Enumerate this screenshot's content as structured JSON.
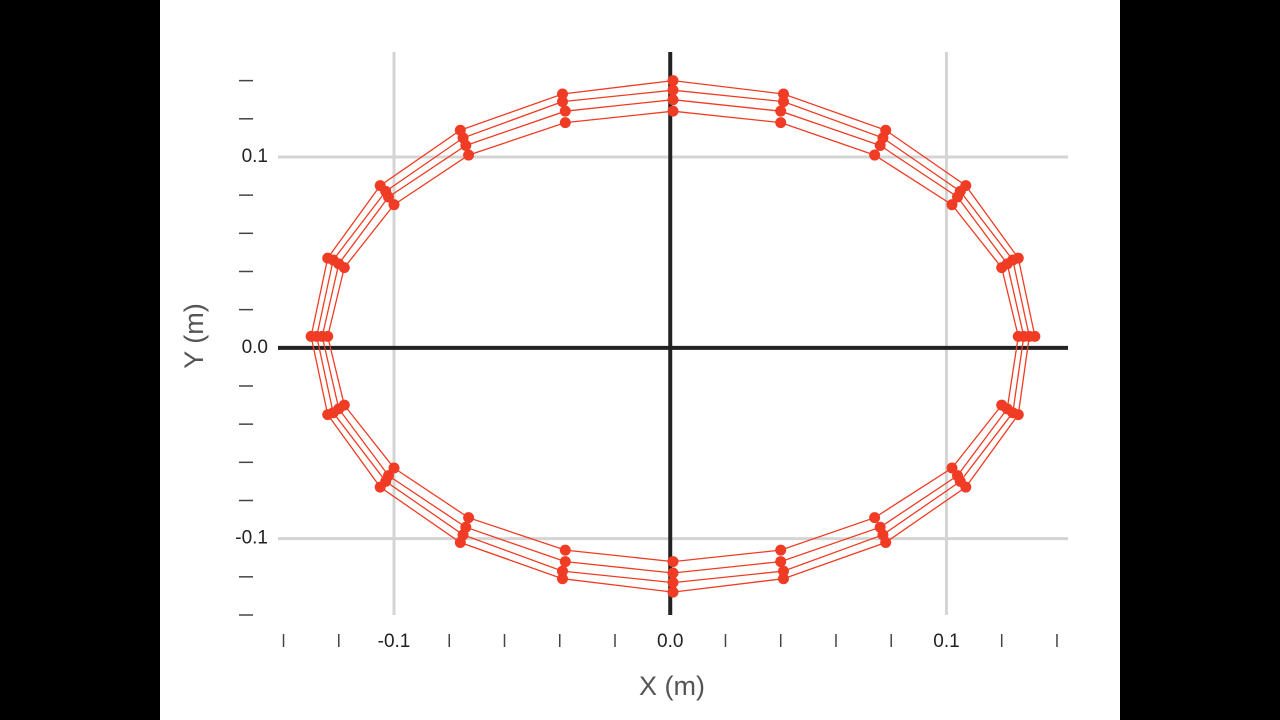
{
  "chart_data": {
    "type": "scatter-line",
    "x_label": "X (m)",
    "y_label": "Y (m)",
    "color": "#f03c24",
    "grid": true,
    "zero_lines": true,
    "xlim": [
      -0.142,
      0.144
    ],
    "ylim": [
      -0.14,
      0.155
    ],
    "xticks": [
      -0.1,
      {
        "value": 0,
        "label": "0.0"
      },
      0.1
    ],
    "yticks": [
      -0.1,
      {
        "value": 0,
        "label": "0.0"
      },
      0.1
    ],
    "xminorticks": [
      -0.14,
      -0.12,
      -0.08,
      -0.06,
      -0.04,
      -0.02,
      0.02,
      0.04,
      0.06,
      0.08,
      0.12,
      0.14
    ],
    "yminorticks": [
      -0.14,
      -0.12,
      -0.08,
      -0.06,
      -0.04,
      -0.02,
      0.02,
      0.04,
      0.06,
      0.08,
      0.12,
      0.14
    ],
    "x": [
      0.132,
      0.126,
      0.107,
      0.078,
      0.041,
      0.001,
      -0.039,
      -0.076,
      -0.105,
      -0.124,
      -0.13,
      -0.124,
      -0.105,
      -0.076,
      -0.039,
      0.001,
      0.041,
      0.078,
      0.107,
      0.126,
      0.13,
      0.124,
      0.105,
      0.077,
      0.041,
      0.001,
      -0.039,
      -0.075,
      -0.103,
      -0.122,
      -0.128,
      -0.122,
      -0.103,
      -0.075,
      -0.039,
      0.001,
      0.041,
      0.077,
      0.105,
      0.124,
      0.128,
      0.122,
      0.104,
      0.076,
      0.04,
      0.001,
      -0.038,
      -0.074,
      -0.102,
      -0.12,
      -0.126,
      -0.12,
      -0.102,
      -0.074,
      -0.038,
      0.001,
      0.04,
      0.076,
      0.104,
      0.122,
      0.126,
      0.12,
      0.102,
      0.074,
      0.04,
      0.001,
      -0.038,
      -0.073,
      -0.1,
      -0.118,
      -0.124,
      -0.118,
      -0.1,
      -0.073,
      -0.038,
      0.001,
      0.04,
      0.074,
      0.102,
      0.12
    ],
    "y": [
      0.006,
      0.047,
      0.085,
      0.114,
      0.133,
      0.14,
      0.133,
      0.114,
      0.085,
      0.047,
      0.006,
      -0.035,
      -0.073,
      -0.102,
      -0.121,
      -0.128,
      -0.121,
      -0.102,
      -0.073,
      -0.035,
      0.006,
      0.046,
      0.082,
      0.11,
      0.129,
      0.135,
      0.129,
      0.11,
      0.082,
      0.046,
      0.006,
      -0.034,
      -0.07,
      -0.098,
      -0.117,
      -0.123,
      -0.117,
      -0.098,
      -0.07,
      -0.034,
      0.006,
      0.044,
      0.079,
      0.106,
      0.124,
      0.13,
      0.124,
      0.106,
      0.079,
      0.044,
      0.006,
      -0.032,
      -0.067,
      -0.094,
      -0.112,
      -0.118,
      -0.112,
      -0.094,
      -0.067,
      -0.032,
      0.006,
      0.042,
      0.075,
      0.101,
      0.118,
      0.124,
      0.118,
      0.101,
      0.075,
      0.042,
      0.006,
      -0.03,
      -0.063,
      -0.089,
      -0.106,
      -0.112,
      -0.106,
      -0.089,
      -0.063,
      -0.03
    ]
  }
}
